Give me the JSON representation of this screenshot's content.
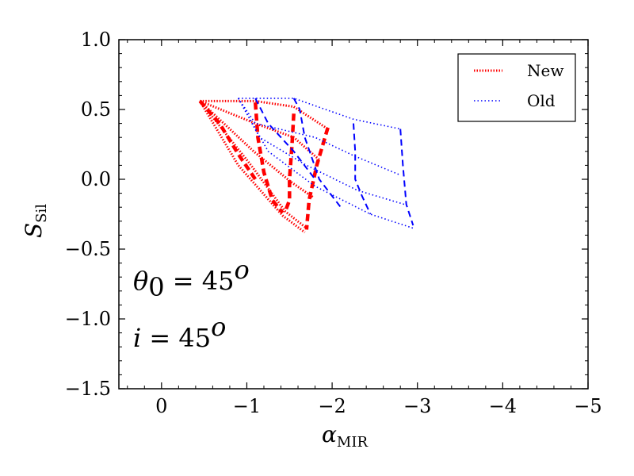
{
  "chart_data": {
    "type": "line",
    "xlabel": {
      "symbol": "α",
      "subscript": "MIR"
    },
    "ylabel": {
      "symbol": "S",
      "subscript": "Sil"
    },
    "xlim": [
      0.5,
      -5
    ],
    "ylim": [
      -1.5,
      1.0
    ],
    "x_ticks": [
      0,
      -1,
      -2,
      -3,
      -4,
      -5
    ],
    "x_tick_labels": [
      "0",
      "−1",
      "−2",
      "−3",
      "−4",
      "−5"
    ],
    "y_ticks": [
      1.0,
      0.5,
      0.0,
      -0.5,
      -1.0,
      -1.5
    ],
    "y_tick_labels": [
      "1.0",
      "0.5",
      "0.0",
      "−0.5",
      "−1.0",
      "−1.5"
    ],
    "grid": false,
    "legend": {
      "placement": "top-right",
      "entries": [
        {
          "label": "New",
          "color": "#ff0000"
        },
        {
          "label": "Old",
          "color": "#0000ff"
        }
      ]
    },
    "annotations": [
      {
        "text": "θ",
        "sub": "0",
        "rest": " = 45",
        "sup": "o"
      },
      {
        "text": "i",
        "sub": "",
        "rest": " = 45",
        "sup": "o"
      }
    ],
    "series": [
      {
        "name": "New",
        "color": "#ff0000",
        "dotted_lines": [
          [
            [
              -0.45,
              0.56
            ],
            [
              -1.1,
              0.56
            ],
            [
              -1.55,
              0.52
            ],
            [
              -1.95,
              0.36
            ]
          ],
          [
            [
              -0.45,
              0.56
            ],
            [
              -1.1,
              0.4
            ],
            [
              -1.55,
              0.3
            ],
            [
              -1.85,
              0.14
            ]
          ],
          [
            [
              -0.45,
              0.56
            ],
            [
              -1.08,
              0.2
            ],
            [
              -1.52,
              -0.02
            ],
            [
              -1.78,
              -0.13
            ]
          ],
          [
            [
              -0.45,
              0.56
            ],
            [
              -1.05,
              0.1
            ],
            [
              -1.45,
              -0.23
            ],
            [
              -1.7,
              -0.35
            ]
          ],
          [
            [
              -0.45,
              0.56
            ],
            [
              -0.9,
              0.1
            ],
            [
              -1.42,
              -0.26
            ],
            [
              -1.68,
              -0.38
            ]
          ]
        ],
        "dashed_lines": [
          [
            [
              -0.45,
              0.56
            ],
            [
              -0.68,
              0.4
            ],
            [
              -0.9,
              0.18
            ],
            [
              -1.1,
              0.0
            ]
          ],
          [
            [
              -1.1,
              0.55
            ],
            [
              -1.13,
              0.3
            ],
            [
              -1.2,
              0.05
            ],
            [
              -1.3,
              -0.15
            ],
            [
              -1.42,
              -0.24
            ]
          ],
          [
            [
              -1.55,
              0.47
            ],
            [
              -1.53,
              0.25
            ],
            [
              -1.5,
              0.0
            ],
            [
              -1.5,
              -0.15
            ],
            [
              -1.45,
              -0.23
            ]
          ],
          [
            [
              -1.95,
              0.37
            ],
            [
              -1.82,
              0.1
            ],
            [
              -1.73,
              -0.15
            ],
            [
              -1.7,
              -0.36
            ]
          ]
        ]
      },
      {
        "name": "Old",
        "color": "#0000ff",
        "dotted_lines": [
          [
            [
              -0.9,
              0.58
            ],
            [
              -1.55,
              0.58
            ],
            [
              -2.25,
              0.43
            ],
            [
              -2.8,
              0.36
            ]
          ],
          [
            [
              -0.9,
              0.58
            ],
            [
              -1.1,
              0.4
            ],
            [
              -1.8,
              0.3
            ],
            [
              -2.25,
              0.17
            ],
            [
              -2.8,
              0.03
            ]
          ],
          [
            [
              -0.9,
              0.58
            ],
            [
              -1.15,
              0.3
            ],
            [
              -1.7,
              0.1
            ],
            [
              -2.3,
              -0.08
            ],
            [
              -2.85,
              -0.18
            ]
          ],
          [
            [
              -0.9,
              0.58
            ],
            [
              -1.25,
              0.2
            ],
            [
              -1.8,
              -0.05
            ],
            [
              -2.45,
              -0.25
            ],
            [
              -2.95,
              -0.35
            ]
          ]
        ],
        "dashed_lines": [
          [
            [
              -1.1,
              0.58
            ],
            [
              -1.25,
              0.4
            ],
            [
              -1.55,
              0.2
            ],
            [
              -1.8,
              0.0
            ]
          ],
          [
            [
              -1.55,
              0.58
            ],
            [
              -1.62,
              0.5
            ],
            [
              -1.68,
              0.3
            ],
            [
              -1.85,
              0.0
            ],
            [
              -2.1,
              -0.2
            ]
          ],
          [
            [
              -2.25,
              0.4
            ],
            [
              -2.27,
              0.2
            ],
            [
              -2.27,
              0.0
            ],
            [
              -2.35,
              -0.12
            ],
            [
              -2.45,
              -0.25
            ]
          ],
          [
            [
              -2.8,
              0.36
            ],
            [
              -2.83,
              0.1
            ],
            [
              -2.87,
              -0.18
            ],
            [
              -2.95,
              -0.33
            ]
          ]
        ]
      }
    ]
  }
}
